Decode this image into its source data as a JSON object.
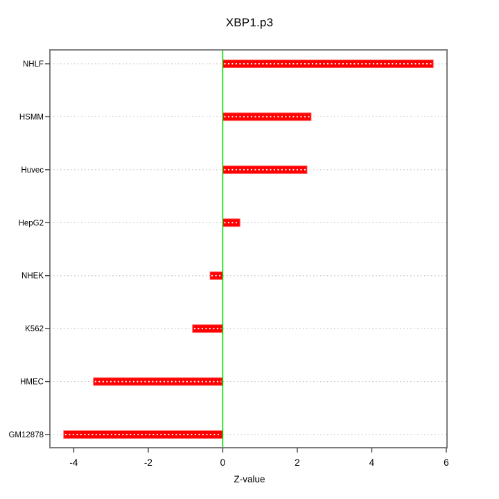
{
  "page": {
    "background": "#ffffff"
  },
  "chart_data": {
    "type": "bar",
    "orientation": "horizontal",
    "title": "XBP1.p3",
    "xlabel": "Z-value",
    "ylabel": "",
    "categories": [
      "NHLF",
      "HSMM",
      "Huvec",
      "HepG2",
      "NHEK",
      "K562",
      "HMEC",
      "GM12878"
    ],
    "values": [
      5.65,
      2.37,
      2.26,
      0.46,
      -0.34,
      -0.81,
      -3.47,
      -4.27
    ],
    "xlim": [
      -4.64,
      6.02
    ],
    "xticks": [
      -4,
      -2,
      0,
      2,
      4,
      6
    ],
    "xtick_labels": [
      "-4",
      "-2",
      "0",
      "2",
      "4",
      "6"
    ],
    "grid": true,
    "grid_style": "dotted",
    "zero_line": true,
    "legend": "none",
    "colors": {
      "bar": "#ff0000",
      "bar_edge": "#ff4d4d",
      "bar_stripe": "#ffffff",
      "zero_line": "#00dd00",
      "grid": "#c6c6c6",
      "frame": "#7d7d7d",
      "tick": "#4a4a4a",
      "text": "#000000"
    }
  }
}
